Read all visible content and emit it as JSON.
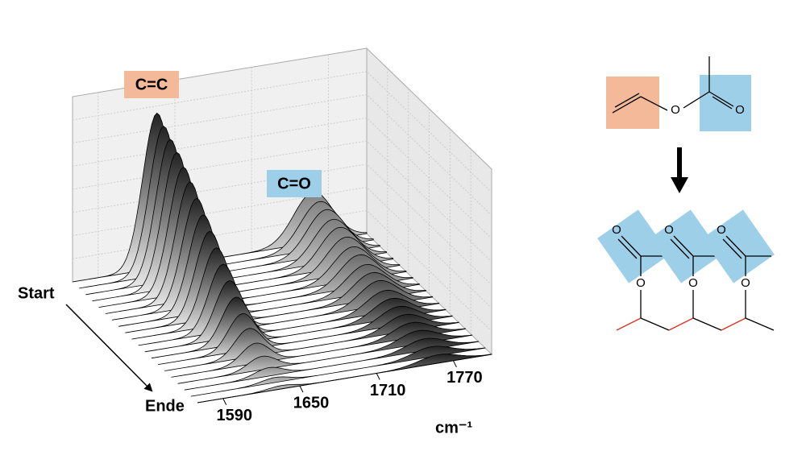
{
  "chart_data": {
    "type": "waterfall",
    "xlabel": "cm⁻¹",
    "xlim": [
      1570,
      1800
    ],
    "xticks": [
      1590,
      1650,
      1710,
      1770
    ],
    "ylim": [
      0,
      1.1
    ],
    "depth_labels": [
      "Start",
      "Ende"
    ],
    "peaks": [
      {
        "label": "C=C",
        "color": "#f4b998",
        "position": 1636,
        "width": 11,
        "heights": [
          0.92,
          0.88,
          0.84,
          0.8,
          0.75,
          0.7,
          0.64,
          0.58,
          0.52,
          0.46,
          0.4,
          0.34,
          0.28,
          0.22,
          0.17,
          0.12,
          0.08,
          0.05,
          0.03,
          0.02
        ]
      },
      {
        "label": "C=O",
        "color": "#9dd0e8",
        "position": 1758,
        "width": 15,
        "heights": [
          0.3,
          0.28,
          0.27,
          0.25,
          0.24,
          0.22,
          0.2,
          0.19,
          0.17,
          0.16,
          0.15,
          0.13,
          0.12,
          0.11,
          0.1,
          0.09,
          0.08,
          0.07,
          0.06,
          0.05
        ]
      }
    ]
  },
  "structures": {
    "monomer": {
      "atoms": [
        "O",
        "O"
      ]
    },
    "polymer": {
      "atoms": [
        "O",
        "O",
        "O",
        "O",
        "O",
        "O"
      ]
    }
  }
}
